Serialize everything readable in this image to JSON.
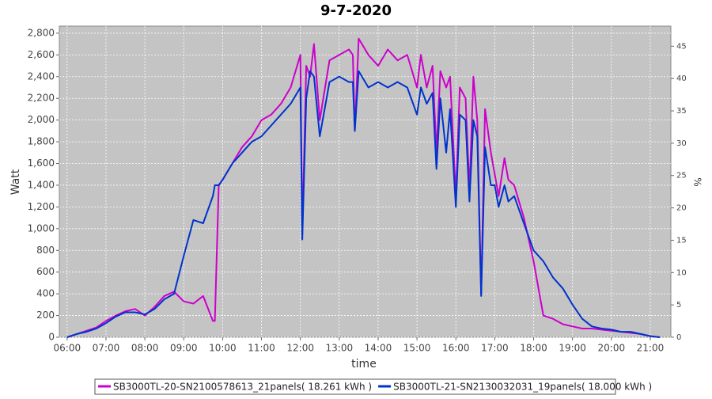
{
  "chart_data": {
    "type": "line",
    "title": "9-7-2020",
    "x_label": "time",
    "y_label": "Watt",
    "y2_label": "%",
    "x": [
      6,
      6.25,
      6.5,
      6.75,
      7,
      7.25,
      7.5,
      7.75,
      8,
      8.25,
      8.5,
      8.75,
      9,
      9.25,
      9.5,
      9.75,
      9.8,
      9.9,
      10,
      10.25,
      10.5,
      10.75,
      11,
      11.25,
      11.5,
      11.75,
      12,
      12.05,
      12.15,
      12.25,
      12.35,
      12.5,
      12.75,
      13,
      13.25,
      13.35,
      13.4,
      13.5,
      13.75,
      14,
      14.25,
      14.5,
      14.75,
      15,
      15.1,
      15.25,
      15.4,
      15.5,
      15.6,
      15.75,
      15.85,
      16,
      16.1,
      16.25,
      16.35,
      16.45,
      16.55,
      16.65,
      16.75,
      16.9,
      17,
      17.1,
      17.25,
      17.35,
      17.5,
      17.75,
      18,
      18.25,
      18.5,
      18.75,
      19,
      19.25,
      19.5,
      19.75,
      20,
      20.25,
      20.5,
      20.75,
      21,
      21.25
    ],
    "series": [
      {
        "name": "SB3000TL-20-SN2100578613_21panels( 18.261 kWh )",
        "color": "#cc00cc",
        "values": [
          0,
          30,
          60,
          90,
          150,
          200,
          240,
          260,
          200,
          280,
          380,
          420,
          330,
          310,
          380,
          150,
          150,
          1400,
          1450,
          1600,
          1750,
          1850,
          2000,
          2050,
          2150,
          2300,
          2600,
          950,
          2500,
          2400,
          2700,
          2000,
          2550,
          2600,
          2650,
          2600,
          1900,
          2750,
          2600,
          2500,
          2650,
          2550,
          2600,
          2300,
          2600,
          2300,
          2500,
          1700,
          2450,
          2300,
          2400,
          1300,
          2300,
          2200,
          1350,
          2400,
          2000,
          400,
          2100,
          1700,
          1500,
          1300,
          1650,
          1450,
          1400,
          1100,
          700,
          200,
          170,
          120,
          100,
          80,
          80,
          70,
          60,
          50,
          40,
          30,
          10,
          0
        ]
      },
      {
        "name": "SB3000TL-21-SN2130032031_19panels( 18.000 kWh )",
        "color": "#0033cc",
        "values": [
          0,
          30,
          50,
          80,
          130,
          190,
          230,
          230,
          210,
          260,
          350,
          400,
          750,
          1080,
          1050,
          1300,
          1400,
          1400,
          1450,
          1600,
          1700,
          1800,
          1850,
          1950,
          2050,
          2150,
          2300,
          900,
          2200,
          2450,
          2400,
          1850,
          2350,
          2400,
          2350,
          2350,
          1900,
          2450,
          2300,
          2350,
          2300,
          2350,
          2300,
          2050,
          2300,
          2150,
          2250,
          1550,
          2200,
          1700,
          2100,
          1200,
          2050,
          2000,
          1250,
          2000,
          1850,
          380,
          1750,
          1400,
          1400,
          1200,
          1400,
          1250,
          1300,
          1050,
          800,
          700,
          550,
          450,
          300,
          170,
          100,
          80,
          70,
          50,
          50,
          30,
          10,
          0
        ]
      }
    ],
    "xlim": [
      5.8,
      21.53
    ],
    "xticks": [
      {
        "value": 6,
        "label": "06:00"
      },
      {
        "value": 7,
        "label": "07:00"
      },
      {
        "value": 8,
        "label": "08:00"
      },
      {
        "value": 9,
        "label": "09:00"
      },
      {
        "value": 10,
        "label": "10:00"
      },
      {
        "value": 11,
        "label": "11:00"
      },
      {
        "value": 12,
        "label": "12:00"
      },
      {
        "value": 13,
        "label": "13:00"
      },
      {
        "value": 14,
        "label": "14:00"
      },
      {
        "value": 15,
        "label": "15:00"
      },
      {
        "value": 16,
        "label": "16:00"
      },
      {
        "value": 17,
        "label": "17:00"
      },
      {
        "value": 18,
        "label": "18:00"
      },
      {
        "value": 19,
        "label": "19:00"
      },
      {
        "value": 20,
        "label": "20:00"
      },
      {
        "value": 21,
        "label": "21:00"
      }
    ],
    "ylim": [
      0,
      2865
    ],
    "yticks": [
      0,
      200,
      400,
      600,
      800,
      {
        "value": 1000,
        "label": "1,000"
      },
      {
        "value": 1200,
        "label": "1,200"
      },
      {
        "value": 1400,
        "label": "1,400"
      },
      {
        "value": 1600,
        "label": "1,600"
      },
      {
        "value": 1800,
        "label": "1,800"
      },
      {
        "value": 2000,
        "label": "2,000"
      },
      {
        "value": 2200,
        "label": "2,200"
      },
      {
        "value": 2400,
        "label": "2,400"
      },
      {
        "value": 2600,
        "label": "2,600"
      },
      {
        "value": 2800,
        "label": "2,800"
      }
    ],
    "y2lim": [
      0,
      48.1
    ],
    "y2ticks": [
      0,
      5,
      10,
      15,
      20,
      25,
      30,
      35,
      40,
      45
    ],
    "grid": true
  }
}
